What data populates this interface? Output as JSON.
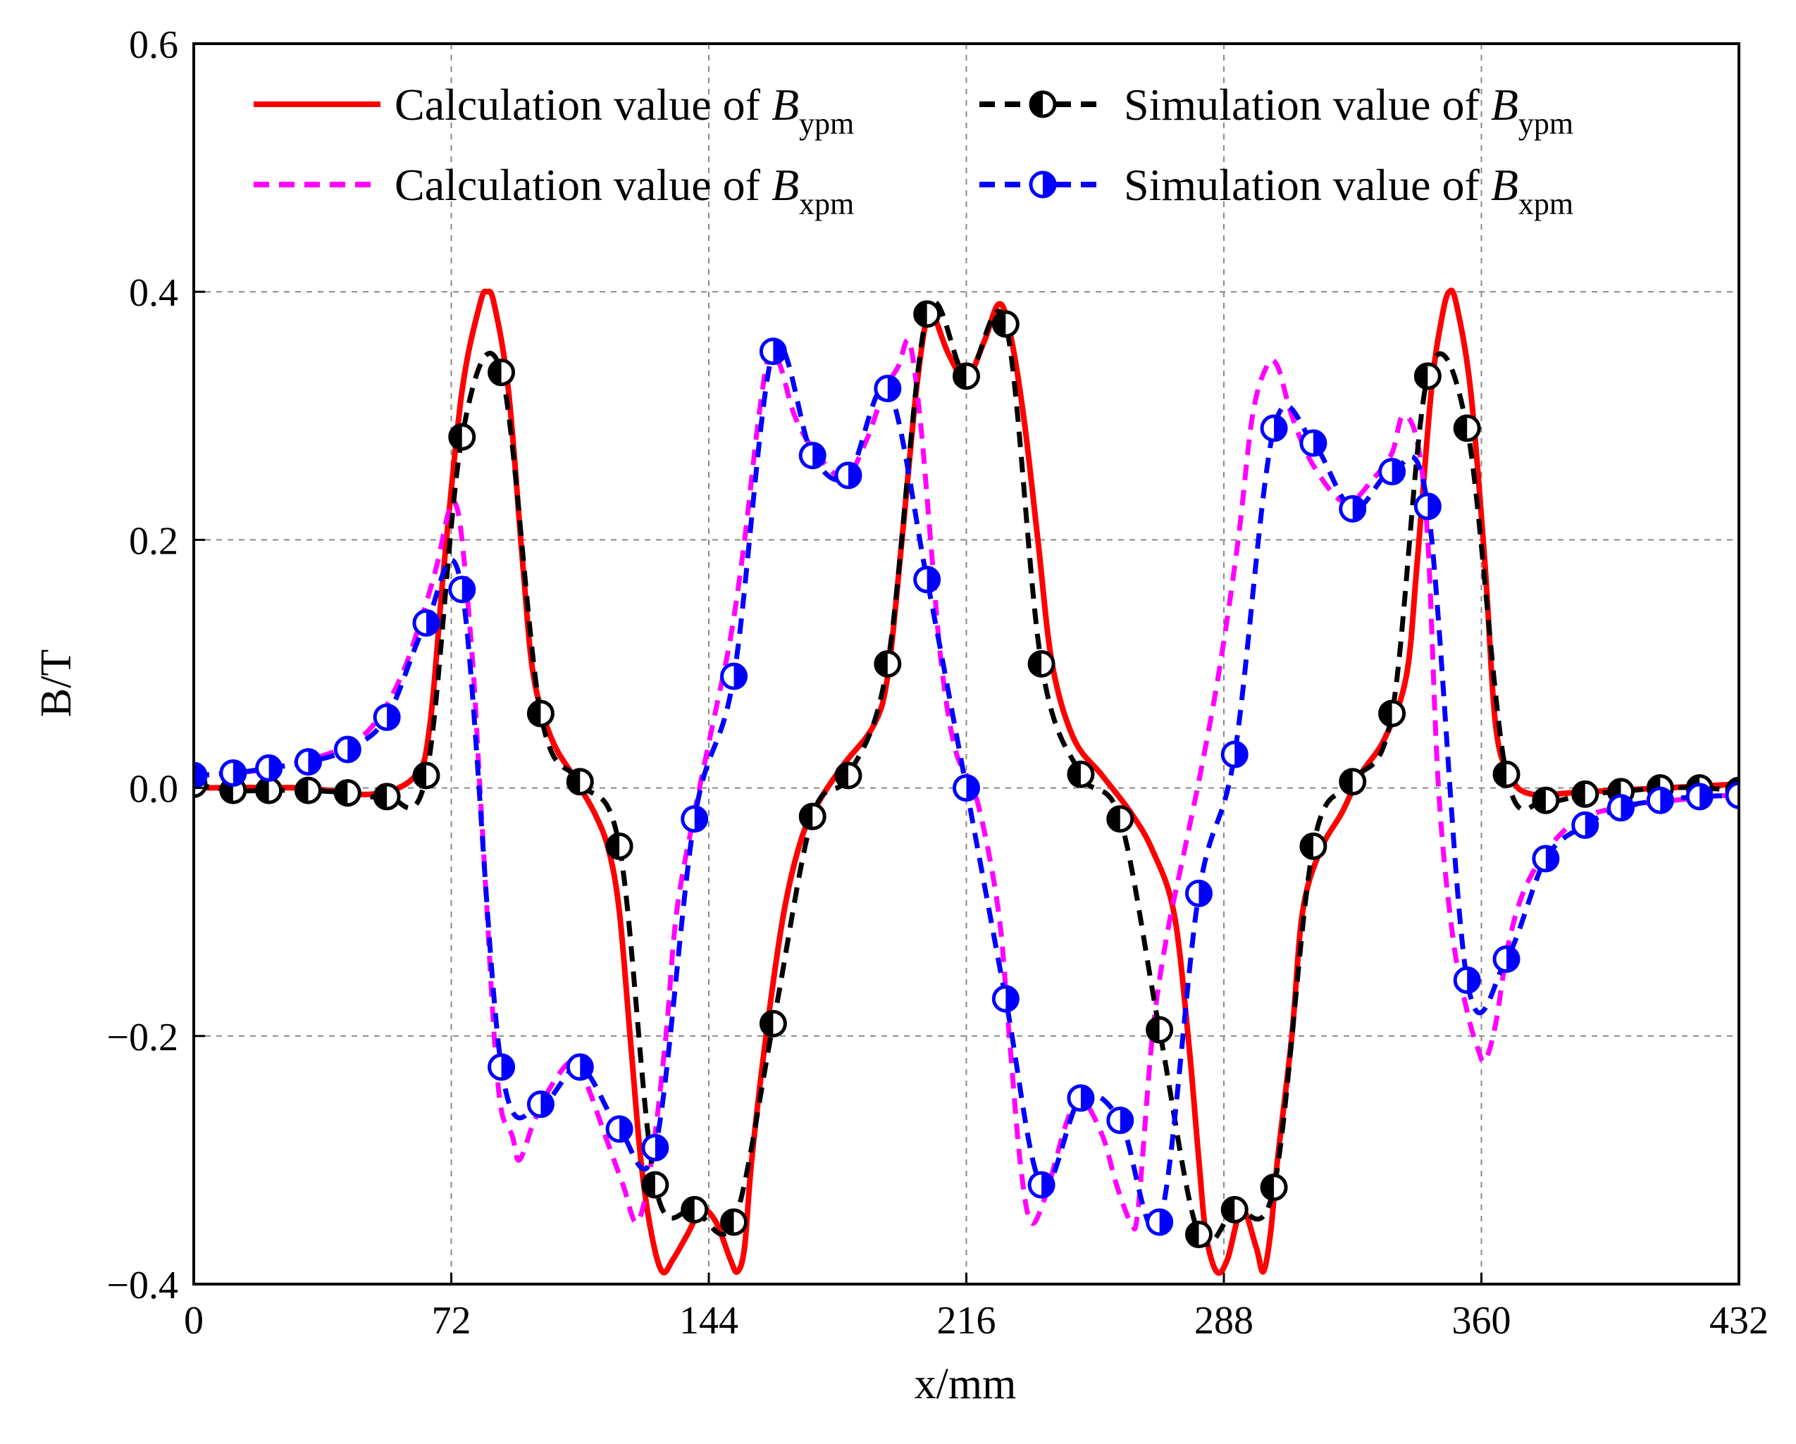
{
  "chart_data": {
    "type": "line",
    "xlabel": "x/mm",
    "ylabel": "B/T",
    "xlim": [
      0,
      432
    ],
    "ylim": [
      -0.4,
      0.6
    ],
    "xticks": [
      0,
      72,
      144,
      216,
      288,
      360,
      432
    ],
    "yticks": [
      -0.4,
      -0.2,
      0.0,
      0.2,
      0.4,
      0.6
    ],
    "xtick_labels": [
      "0",
      "72",
      "144",
      "216",
      "288",
      "360",
      "432"
    ],
    "ytick_labels": [
      "−0.4",
      "−0.2",
      "0.0",
      "0.2",
      "0.4",
      "0.6"
    ],
    "grid": true,
    "legend_position": "top",
    "series": [
      {
        "name": "Calculation value of Bypm",
        "legend_prefix": "Calculation value of ",
        "legend_symbol": "B",
        "legend_subscript": "ypm",
        "color": "#ff0000",
        "style": "solid",
        "marker": "none",
        "points": [
          [
            0,
            0
          ],
          [
            30,
            0
          ],
          [
            50,
            -0.005
          ],
          [
            62,
            0.01
          ],
          [
            66,
            0.05
          ],
          [
            70,
            0.18
          ],
          [
            75,
            0.32
          ],
          [
            80,
            0.39
          ],
          [
            82,
            0.4
          ],
          [
            84,
            0.39
          ],
          [
            88,
            0.32
          ],
          [
            92,
            0.18
          ],
          [
            95,
            0.09
          ],
          [
            100,
            0.04
          ],
          [
            106,
            0.01
          ],
          [
            112,
            -0.02
          ],
          [
            116,
            -0.05
          ],
          [
            119,
            -0.1
          ],
          [
            122,
            -0.2
          ],
          [
            125,
            -0.3
          ],
          [
            128,
            -0.36
          ],
          [
            131,
            -0.39
          ],
          [
            134,
            -0.38
          ],
          [
            138,
            -0.36
          ],
          [
            142,
            -0.34
          ],
          [
            146,
            -0.35
          ],
          [
            150,
            -0.38
          ],
          [
            152,
            -0.39
          ],
          [
            154,
            -0.37
          ],
          [
            156,
            -0.3
          ],
          [
            160,
            -0.2
          ],
          [
            165,
            -0.1
          ],
          [
            170,
            -0.04
          ],
          [
            175,
            -0.01
          ],
          [
            182,
            0.02
          ],
          [
            190,
            0.05
          ],
          [
            194,
            0.09
          ],
          [
            198,
            0.2
          ],
          [
            202,
            0.32
          ],
          [
            205,
            0.38
          ],
          [
            207,
            0.38
          ],
          [
            211,
            0.35
          ],
          [
            216,
            0.33
          ],
          [
            221,
            0.36
          ],
          [
            225,
            0.39
          ],
          [
            228,
            0.37
          ],
          [
            232,
            0.3
          ],
          [
            236,
            0.2
          ],
          [
            240,
            0.1
          ],
          [
            246,
            0.04
          ],
          [
            254,
            0.01
          ],
          [
            262,
            -0.02
          ],
          [
            268,
            -0.05
          ],
          [
            274,
            -0.1
          ],
          [
            278,
            -0.2
          ],
          [
            281,
            -0.3
          ],
          [
            283,
            -0.36
          ],
          [
            286,
            -0.39
          ],
          [
            289,
            -0.38
          ],
          [
            293,
            -0.34
          ],
          [
            297,
            -0.37
          ],
          [
            299,
            -0.39
          ],
          [
            301,
            -0.36
          ],
          [
            303,
            -0.3
          ],
          [
            307,
            -0.2
          ],
          [
            310,
            -0.1
          ],
          [
            315,
            -0.05
          ],
          [
            321,
            -0.02
          ],
          [
            326,
            0.01
          ],
          [
            333,
            0.04
          ],
          [
            339,
            0.09
          ],
          [
            342,
            0.18
          ],
          [
            346,
            0.32
          ],
          [
            349,
            0.38
          ],
          [
            351,
            0.4
          ],
          [
            353,
            0.39
          ],
          [
            357,
            0.32
          ],
          [
            361,
            0.18
          ],
          [
            364,
            0.05
          ],
          [
            368,
            0.01
          ],
          [
            374,
            -0.005
          ],
          [
            390,
            -0.003
          ],
          [
            432,
            0.003
          ]
        ]
      },
      {
        "name": "Simulation value of Bypm",
        "legend_prefix": "Simulation value of ",
        "legend_symbol": "B",
        "legend_subscript": "ypm",
        "color": "#000000",
        "style": "dashed",
        "marker": "half-filled-circle",
        "points": [
          [
            0,
            0.003
          ],
          [
            11,
            -0.002
          ],
          [
            21,
            -0.002
          ],
          [
            32,
            -0.002
          ],
          [
            43,
            -0.004
          ],
          [
            54,
            -0.007
          ],
          [
            65,
            0.01
          ],
          [
            75,
            0.283
          ],
          [
            86,
            0.335
          ],
          [
            97,
            0.06
          ],
          [
            108,
            0.005
          ],
          [
            119,
            -0.047
          ],
          [
            129,
            -0.32
          ],
          [
            140,
            -0.34
          ],
          [
            151,
            -0.35
          ],
          [
            162,
            -0.19
          ],
          [
            173,
            -0.023
          ],
          [
            183,
            0.01
          ],
          [
            194,
            0.1
          ],
          [
            205,
            0.382
          ],
          [
            216,
            0.332
          ],
          [
            227,
            0.374
          ],
          [
            237,
            0.1
          ],
          [
            248,
            0.011
          ],
          [
            259,
            -0.025
          ],
          [
            270,
            -0.195
          ],
          [
            281,
            -0.36
          ],
          [
            291,
            -0.34
          ],
          [
            302,
            -0.322
          ],
          [
            313,
            -0.047
          ],
          [
            324,
            0.005
          ],
          [
            335,
            0.06
          ],
          [
            345,
            0.332
          ],
          [
            356,
            0.29
          ],
          [
            367,
            0.011
          ],
          [
            378,
            -0.01
          ],
          [
            389,
            -0.005
          ],
          [
            399,
            -0.003
          ],
          [
            410,
            0.0
          ],
          [
            421,
            0.0
          ],
          [
            432,
            -0.002
          ]
        ]
      },
      {
        "name": "Calculation value of Bxpm",
        "legend_prefix": "Calculation value of ",
        "legend_symbol": "B",
        "legend_subscript": "xpm",
        "color": "#ff00ff",
        "style": "dashed",
        "marker": "none",
        "points": [
          [
            0,
            0.01
          ],
          [
            20,
            0.015
          ],
          [
            40,
            0.03
          ],
          [
            50,
            0.05
          ],
          [
            58,
            0.09
          ],
          [
            64,
            0.14
          ],
          [
            68,
            0.18
          ],
          [
            71,
            0.22
          ],
          [
            73,
            0.23
          ],
          [
            75,
            0.2
          ],
          [
            78,
            0.1
          ],
          [
            80,
            0.0
          ],
          [
            82,
            -0.1
          ],
          [
            84,
            -0.2
          ],
          [
            86,
            -0.26
          ],
          [
            89,
            -0.28
          ],
          [
            91,
            -0.3
          ],
          [
            95,
            -0.27
          ],
          [
            100,
            -0.24
          ],
          [
            106,
            -0.22
          ],
          [
            110,
            -0.24
          ],
          [
            115,
            -0.28
          ],
          [
            120,
            -0.32
          ],
          [
            124,
            -0.35
          ],
          [
            128,
            -0.3
          ],
          [
            132,
            -0.2
          ],
          [
            135,
            -0.1
          ],
          [
            140,
            -0.02
          ],
          [
            145,
            0.05
          ],
          [
            150,
            0.12
          ],
          [
            154,
            0.2
          ],
          [
            158,
            0.3
          ],
          [
            161,
            0.35
          ],
          [
            164,
            0.34
          ],
          [
            168,
            0.3
          ],
          [
            174,
            0.27
          ],
          [
            182,
            0.25
          ],
          [
            188,
            0.28
          ],
          [
            193,
            0.32
          ],
          [
            197,
            0.34
          ],
          [
            200,
            0.36
          ],
          [
            203,
            0.3
          ],
          [
            206,
            0.2
          ],
          [
            209,
            0.1
          ],
          [
            213,
            0.03
          ],
          [
            219,
            -0.01
          ],
          [
            225,
            -0.1
          ],
          [
            228,
            -0.2
          ],
          [
            231,
            -0.3
          ],
          [
            234,
            -0.35
          ],
          [
            238,
            -0.33
          ],
          [
            244,
            -0.27
          ],
          [
            248,
            -0.25
          ],
          [
            254,
            -0.28
          ],
          [
            258,
            -0.32
          ],
          [
            262,
            -0.35
          ],
          [
            264,
            -0.34
          ],
          [
            268,
            -0.2
          ],
          [
            272,
            -0.12
          ],
          [
            277,
            -0.05
          ],
          [
            282,
            0.02
          ],
          [
            287,
            0.1
          ],
          [
            292,
            0.2
          ],
          [
            296,
            0.3
          ],
          [
            300,
            0.34
          ],
          [
            303,
            0.34
          ],
          [
            307,
            0.3
          ],
          [
            313,
            0.26
          ],
          [
            322,
            0.23
          ],
          [
            330,
            0.25
          ],
          [
            335,
            0.27
          ],
          [
            338,
            0.3
          ],
          [
            342,
            0.28
          ],
          [
            345,
            0.2
          ],
          [
            348,
            0.0
          ],
          [
            352,
            -0.12
          ],
          [
            356,
            -0.18
          ],
          [
            359,
            -0.21
          ],
          [
            361,
            -0.22
          ],
          [
            364,
            -0.19
          ],
          [
            368,
            -0.12
          ],
          [
            374,
            -0.07
          ],
          [
            385,
            -0.03
          ],
          [
            400,
            -0.015
          ],
          [
            432,
            -0.005
          ]
        ]
      },
      {
        "name": "Simulation value of Bxpm",
        "legend_prefix": "Simulation value of ",
        "legend_symbol": "B",
        "legend_subscript": "xpm",
        "color": "#0000ff",
        "style": "dashed",
        "marker": "half-filled-circle",
        "points": [
          [
            0,
            0.01
          ],
          [
            11,
            0.012
          ],
          [
            21,
            0.016
          ],
          [
            32,
            0.021
          ],
          [
            43,
            0.031
          ],
          [
            54,
            0.057
          ],
          [
            65,
            0.133
          ],
          [
            75,
            0.16
          ],
          [
            86,
            -0.225
          ],
          [
            97,
            -0.255
          ],
          [
            108,
            -0.225
          ],
          [
            119,
            -0.275
          ],
          [
            129,
            -0.29
          ],
          [
            140,
            -0.025
          ],
          [
            151,
            0.09
          ],
          [
            162,
            0.352
          ],
          [
            173,
            0.268
          ],
          [
            183,
            0.252
          ],
          [
            194,
            0.322
          ],
          [
            205,
            0.168
          ],
          [
            216,
            0.0
          ],
          [
            227,
            -0.17
          ],
          [
            237,
            -0.32
          ],
          [
            248,
            -0.25
          ],
          [
            259,
            -0.268
          ],
          [
            270,
            -0.35
          ],
          [
            281,
            -0.085
          ],
          [
            291,
            0.027
          ],
          [
            302,
            0.29
          ],
          [
            313,
            0.278
          ],
          [
            324,
            0.225
          ],
          [
            335,
            0.255
          ],
          [
            345,
            0.227
          ],
          [
            356,
            -0.155
          ],
          [
            367,
            -0.138
          ],
          [
            378,
            -0.057
          ],
          [
            389,
            -0.03
          ],
          [
            399,
            -0.016
          ],
          [
            410,
            -0.01
          ],
          [
            421,
            -0.007
          ],
          [
            432,
            -0.006
          ]
        ]
      }
    ]
  }
}
